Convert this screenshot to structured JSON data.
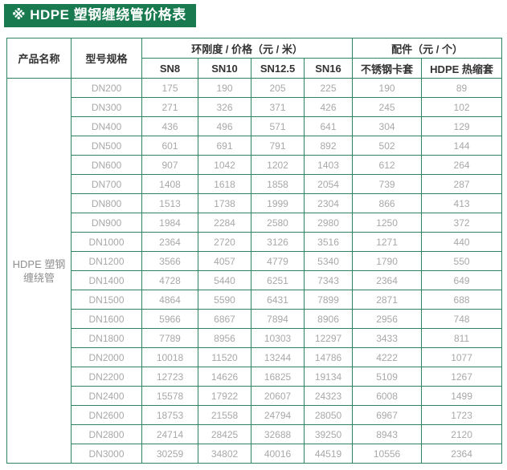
{
  "title": "※ HDPE 塑钢缠绕管价格表",
  "colors": {
    "brand_green": "#187a4e",
    "table_border_green": "#2a8560",
    "header_text": "#333333",
    "value_text": "#a8a8a8",
    "background": "#ffffff"
  },
  "table": {
    "header": {
      "product": "产品名称",
      "model": "型号规格",
      "price_group": "环刚度 / 价格（元 / 米）",
      "accessories_group": "配件（元 / 个）",
      "sn_cols": [
        "SN8",
        "SN10",
        "SN12.5",
        "SN16"
      ],
      "acc_cols": [
        "不锈钢卡套",
        "HDPE 热缩套"
      ]
    },
    "product_name": "HDPE 塑钢缠绕管",
    "rows": [
      {
        "model": "DN200",
        "values": [
          175,
          190,
          205,
          225,
          190,
          89
        ]
      },
      {
        "model": "DN300",
        "values": [
          271,
          326,
          371,
          426,
          245,
          102
        ]
      },
      {
        "model": "DN400",
        "values": [
          436,
          496,
          571,
          641,
          304,
          129
        ]
      },
      {
        "model": "DN500",
        "values": [
          601,
          691,
          791,
          892,
          502,
          144
        ]
      },
      {
        "model": "DN600",
        "values": [
          907,
          1042,
          1202,
          1403,
          612,
          264
        ]
      },
      {
        "model": "DN700",
        "values": [
          1408,
          1618,
          1858,
          2054,
          739,
          287
        ]
      },
      {
        "model": "DN800",
        "values": [
          1513,
          1738,
          1999,
          2304,
          866,
          413
        ]
      },
      {
        "model": "DN900",
        "values": [
          1984,
          2284,
          2580,
          2980,
          1250,
          372
        ]
      },
      {
        "model": "DN1000",
        "values": [
          2364,
          2720,
          3126,
          3516,
          1271,
          440
        ]
      },
      {
        "model": "DN1200",
        "values": [
          3566,
          4057,
          4779,
          5340,
          1790,
          550
        ]
      },
      {
        "model": "DN1400",
        "values": [
          4728,
          5440,
          6251,
          7343,
          2364,
          649
        ]
      },
      {
        "model": "DN1500",
        "values": [
          4864,
          5590,
          6431,
          7899,
          2871,
          688
        ]
      },
      {
        "model": "DN1600",
        "values": [
          5966,
          6867,
          7894,
          8906,
          2956,
          748
        ]
      },
      {
        "model": "DN1800",
        "values": [
          7789,
          8956,
          10303,
          12297,
          3433,
          811
        ]
      },
      {
        "model": "DN2000",
        "values": [
          10018,
          11520,
          13244,
          14786,
          4222,
          1077
        ]
      },
      {
        "model": "DN2200",
        "values": [
          12723,
          14626,
          16825,
          19134,
          5109,
          1267
        ]
      },
      {
        "model": "DN2400",
        "values": [
          15578,
          17922,
          20607,
          24323,
          6008,
          1499
        ]
      },
      {
        "model": "DN2600",
        "values": [
          18753,
          21558,
          24794,
          28050,
          6967,
          1723
        ]
      },
      {
        "model": "DN2800",
        "values": [
          24714,
          28425,
          32688,
          39250,
          8943,
          2120
        ]
      },
      {
        "model": "DN3000",
        "values": [
          30259,
          34802,
          40016,
          44519,
          10556,
          2364
        ]
      }
    ]
  }
}
